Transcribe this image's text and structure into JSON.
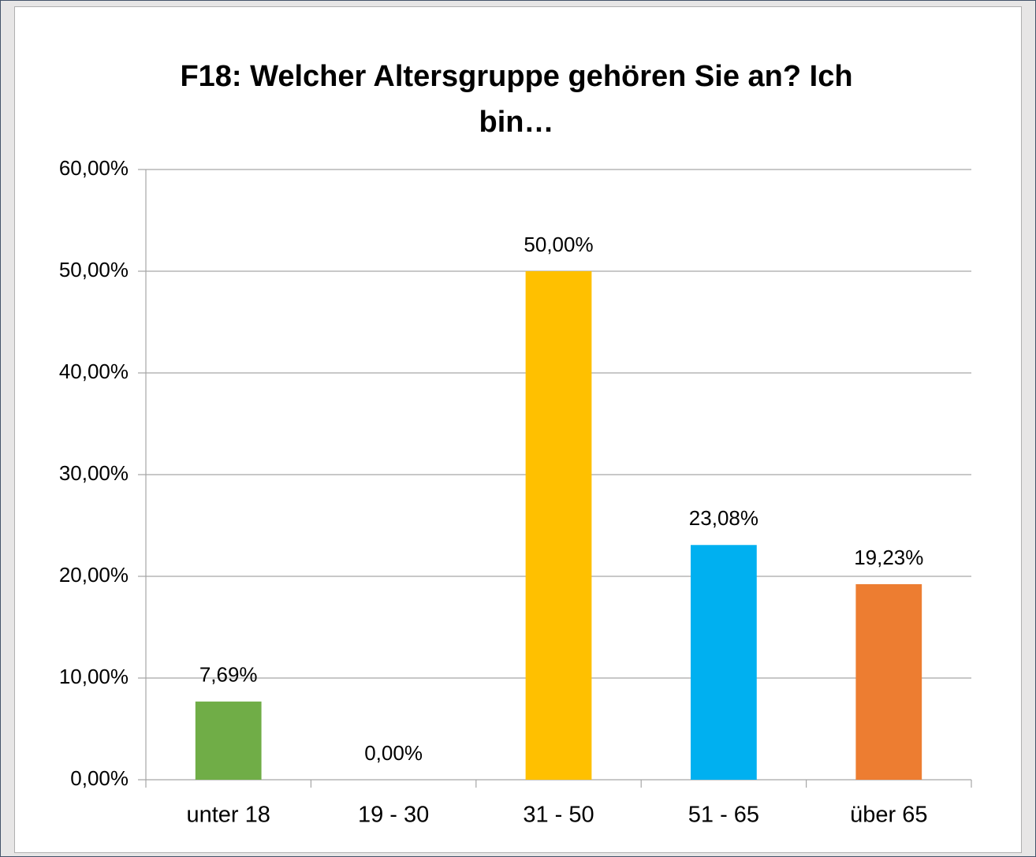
{
  "chart_data": {
    "type": "bar",
    "title": "F18: Welcher Altersgruppe gehören Sie an? Ich bin…",
    "categories": [
      "unter 18",
      "19 - 30",
      "31 - 50",
      "51 - 65",
      "über 65"
    ],
    "values": [
      7.69,
      0,
      50,
      23.08,
      19.23
    ],
    "value_labels": [
      "7,69%",
      "0,00%",
      "50,00%",
      "23,08%",
      "19,23%"
    ],
    "colors": [
      "#70ad47",
      "#a5a5a5",
      "#ffc000",
      "#00b0f0",
      "#ed7d31"
    ],
    "ylim": [
      0,
      60
    ],
    "yticks": [
      {
        "value": 0,
        "label": "0,00%"
      },
      {
        "value": 10,
        "label": "10,00%"
      },
      {
        "value": 20,
        "label": "20,00%"
      },
      {
        "value": 30,
        "label": "30,00%"
      },
      {
        "value": 40,
        "label": "40,00%"
      },
      {
        "value": 50,
        "label": "50,00%"
      },
      {
        "value": 60,
        "label": "60,00%"
      }
    ],
    "grid": true
  }
}
